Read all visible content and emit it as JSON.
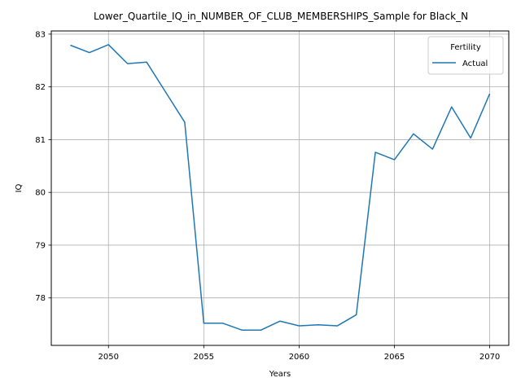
{
  "chart_data": {
    "type": "line",
    "title": "Lower_Quartile_IQ_in_NUMBER_OF_CLUB_MEMBERSHIPS_Sample for Black_N",
    "xlabel": "Years",
    "ylabel": "IQ",
    "xlim": [
      2047,
      2071
    ],
    "ylim": [
      77.1,
      83.06
    ],
    "xticks": [
      2050,
      2055,
      2060,
      2065,
      2070
    ],
    "yticks": [
      78,
      79,
      80,
      81,
      82,
      83
    ],
    "grid": true,
    "legend": {
      "title": "Fertility",
      "position": "top-right"
    },
    "series": [
      {
        "name": "Actual",
        "color": "#1f77b4",
        "x": [
          2048,
          2049,
          2050,
          2051,
          2052,
          2053,
          2054,
          2055,
          2056,
          2057,
          2058,
          2059,
          2060,
          2061,
          2062,
          2063,
          2064,
          2065,
          2066,
          2067,
          2068,
          2069,
          2070
        ],
        "y": [
          82.79,
          82.65,
          82.8,
          82.44,
          82.47,
          81.9,
          81.33,
          77.52,
          77.52,
          77.39,
          77.39,
          77.56,
          77.47,
          77.49,
          77.47,
          77.68,
          80.76,
          80.62,
          81.11,
          80.82,
          81.62,
          81.03,
          81.87
        ]
      }
    ]
  }
}
